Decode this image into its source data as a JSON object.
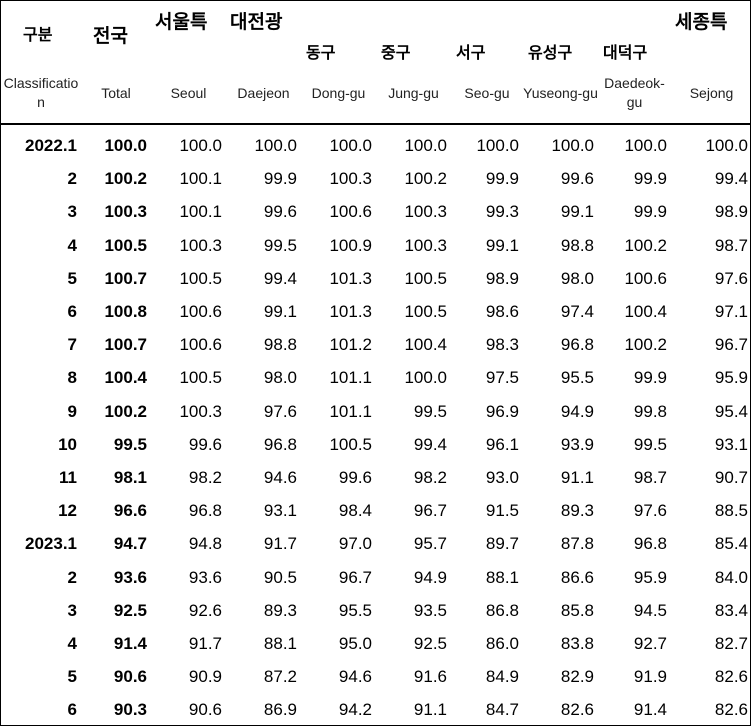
{
  "header": {
    "columns": [
      {
        "ko": "구분",
        "en": "Classification"
      },
      {
        "ko": "전국",
        "en": "Total"
      },
      {
        "ko": "서울특",
        "en": "Seoul"
      },
      {
        "ko": "대전광",
        "en": "Daejeon"
      },
      {
        "ko": "동구",
        "en": "Dong-gu"
      },
      {
        "ko": "중구",
        "en": "Jung-gu"
      },
      {
        "ko": "서구",
        "en": "Seo-gu"
      },
      {
        "ko": "유성구",
        "en": "Yuseong-gu"
      },
      {
        "ko": "대덕구",
        "en": "Daedeok-gu"
      },
      {
        "ko": "세종특",
        "en": "Sejong"
      }
    ]
  },
  "table": {
    "rows": [
      [
        "2022.1",
        "100.0",
        "100.0",
        "100.0",
        "100.0",
        "100.0",
        "100.0",
        "100.0",
        "100.0",
        "100.0"
      ],
      [
        "2",
        "100.2",
        "100.1",
        "99.9",
        "100.3",
        "100.2",
        "99.9",
        "99.6",
        "99.9",
        "99.4"
      ],
      [
        "3",
        "100.3",
        "100.1",
        "99.6",
        "100.6",
        "100.3",
        "99.3",
        "99.1",
        "99.9",
        "98.9"
      ],
      [
        "4",
        "100.5",
        "100.3",
        "99.5",
        "100.9",
        "100.3",
        "99.1",
        "98.8",
        "100.2",
        "98.7"
      ],
      [
        "5",
        "100.7",
        "100.5",
        "99.4",
        "101.3",
        "100.5",
        "98.9",
        "98.0",
        "100.6",
        "97.6"
      ],
      [
        "6",
        "100.8",
        "100.6",
        "99.1",
        "101.3",
        "100.5",
        "98.6",
        "97.4",
        "100.4",
        "97.1"
      ],
      [
        "7",
        "100.7",
        "100.6",
        "98.8",
        "101.2",
        "100.4",
        "98.3",
        "96.8",
        "100.2",
        "96.7"
      ],
      [
        "8",
        "100.4",
        "100.5",
        "98.0",
        "101.1",
        "100.0",
        "97.5",
        "95.5",
        "99.9",
        "95.9"
      ],
      [
        "9",
        "100.2",
        "100.3",
        "97.6",
        "101.1",
        "99.5",
        "96.9",
        "94.9",
        "99.8",
        "95.4"
      ],
      [
        "10",
        "99.5",
        "99.6",
        "96.8",
        "100.5",
        "99.4",
        "96.1",
        "93.9",
        "99.5",
        "93.1"
      ],
      [
        "11",
        "98.1",
        "98.2",
        "94.6",
        "99.6",
        "98.2",
        "93.0",
        "91.1",
        "98.7",
        "90.7"
      ],
      [
        "12",
        "96.6",
        "96.8",
        "93.1",
        "98.4",
        "96.7",
        "91.5",
        "89.3",
        "97.6",
        "88.5"
      ],
      [
        "2023.1",
        "94.7",
        "94.8",
        "91.7",
        "97.0",
        "95.7",
        "89.7",
        "87.8",
        "96.8",
        "85.4"
      ],
      [
        "2",
        "93.6",
        "93.6",
        "90.5",
        "96.7",
        "94.9",
        "88.1",
        "86.6",
        "95.9",
        "84.0"
      ],
      [
        "3",
        "92.5",
        "92.6",
        "89.3",
        "95.5",
        "93.5",
        "86.8",
        "85.8",
        "94.5",
        "83.4"
      ],
      [
        "4",
        "91.4",
        "91.7",
        "88.1",
        "95.0",
        "92.5",
        "86.0",
        "83.8",
        "92.7",
        "82.7"
      ],
      [
        "5",
        "90.6",
        "90.9",
        "87.2",
        "94.6",
        "91.6",
        "84.9",
        "82.9",
        "91.9",
        "82.6"
      ],
      [
        "6",
        "90.3",
        "90.6",
        "86.9",
        "94.2",
        "91.1",
        "84.7",
        "82.6",
        "91.4",
        "82.6"
      ]
    ]
  }
}
